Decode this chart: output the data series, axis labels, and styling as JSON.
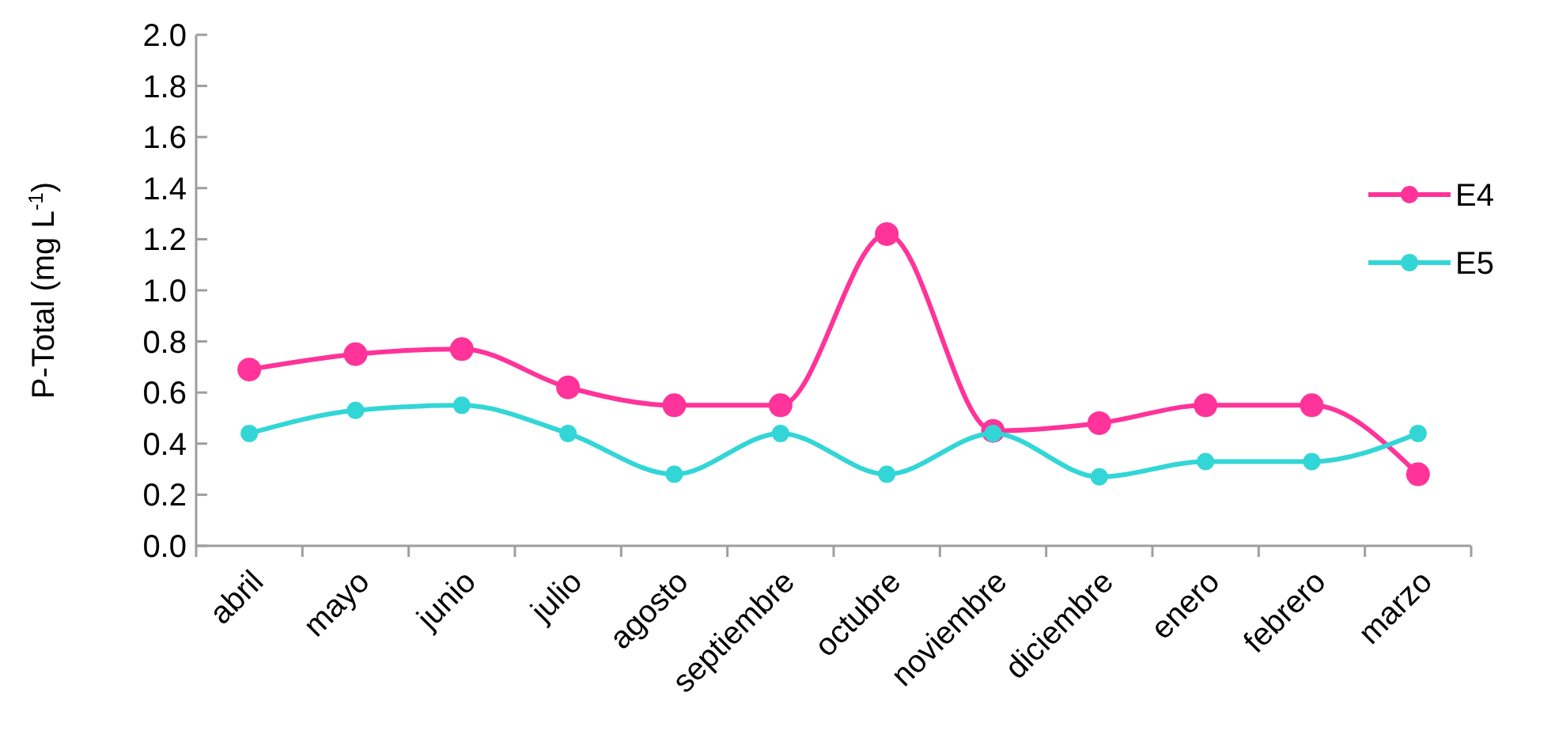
{
  "chart_data": {
    "type": "line",
    "ylabel": "P-Total (mg L$^{-1}$)",
    "categories": [
      "abril",
      "mayo",
      "junio",
      "julio",
      "agosto",
      "septiembre",
      "octubre",
      "noviembre",
      "diciembre",
      "enero",
      "febrero",
      "marzo"
    ],
    "series": [
      {
        "name": "E4",
        "color": "#ff3399",
        "values": [
          0.69,
          0.75,
          0.77,
          0.62,
          0.55,
          0.55,
          1.22,
          0.45,
          0.48,
          0.55,
          0.55,
          0.28
        ]
      },
      {
        "name": "E5",
        "color": "#33d6d6",
        "values": [
          0.44,
          0.53,
          0.55,
          0.44,
          0.28,
          0.44,
          0.28,
          0.44,
          0.27,
          0.33,
          0.33,
          0.44
        ]
      }
    ],
    "ylim": [
      0,
      2
    ],
    "yticks": [
      {
        "value": 0,
        "label": "0.0"
      },
      0.2,
      0.4,
      0.6,
      0.8,
      {
        "value": 1,
        "label": "1.0"
      },
      1.2,
      1.4,
      1.6,
      1.8,
      {
        "value": 2,
        "label": "2.0"
      }
    ],
    "grid": false,
    "legend": "right",
    "marker": "circle",
    "line_style": "solid"
  }
}
